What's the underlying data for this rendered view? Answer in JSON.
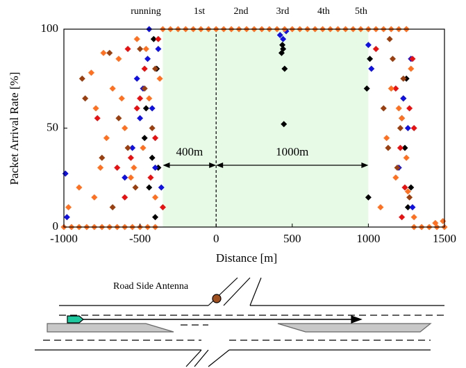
{
  "chart_data": {
    "type": "scatter",
    "y_label": "Packet Arrival Rate [%]",
    "x_label": "Distance [m]",
    "stages": [
      "running",
      "1st",
      "2nd",
      "3rd",
      "4th",
      "5th"
    ],
    "xlim": [
      -1000,
      1500
    ],
    "xticks": [
      -1000,
      -500,
      0,
      500,
      1000,
      1500
    ],
    "ylim": [
      0,
      100
    ],
    "yticks": [
      0,
      50,
      100
    ],
    "shaded_region": [
      -350,
      1000
    ],
    "shade_color": "#e6fae6",
    "reference_line": 0,
    "annotations": [
      {
        "text": "400m",
        "x": [
          -350,
          0
        ]
      },
      {
        "text": "1000m",
        "x": [
          0,
          1000
        ]
      }
    ],
    "series": [
      {
        "color": "#000000",
        "x": [
          -440,
          -420,
          -460,
          -390,
          -470,
          -410,
          430,
          440,
          450,
          435,
          445,
          1000,
          990,
          1010,
          1240,
          1260,
          1220,
          1250,
          -380,
          -400,
          1280,
          1230
        ],
        "values": [
          20,
          35,
          60,
          80,
          45,
          95,
          88,
          90,
          80,
          92,
          52,
          15,
          70,
          85,
          40,
          10,
          55,
          75,
          30,
          5,
          20,
          65
        ]
      },
      {
        "color": "#1010e0",
        "x": [
          -990,
          -980,
          -550,
          -500,
          -480,
          -450,
          -420,
          -400,
          -380,
          -360,
          -520,
          420,
          440,
          460,
          1000,
          1020,
          1200,
          1230,
          1260,
          1290,
          -600,
          1280,
          -440
        ],
        "values": [
          27,
          5,
          40,
          55,
          70,
          85,
          60,
          30,
          90,
          20,
          75,
          97,
          95,
          99,
          92,
          80,
          30,
          65,
          50,
          10,
          25,
          85,
          100
        ]
      },
      {
        "color": "#e81010",
        "x": [
          -780,
          -600,
          -560,
          -520,
          -470,
          -430,
          -400,
          -380,
          1050,
          1180,
          1210,
          1240,
          1270,
          1290,
          -650,
          -500,
          1220,
          1300,
          -580,
          -350
        ],
        "values": [
          55,
          15,
          35,
          60,
          80,
          25,
          45,
          95,
          90,
          70,
          40,
          20,
          60,
          85,
          30,
          65,
          5,
          50,
          90,
          10
        ]
      },
      {
        "color": "#9a4010",
        "x": [
          -880,
          -860,
          -700,
          -640,
          -580,
          -530,
          -470,
          -420,
          1100,
          1130,
          1160,
          1190,
          1230,
          1270,
          -750,
          -500,
          1140,
          1210,
          -680,
          -400,
          1250
        ],
        "values": [
          75,
          65,
          88,
          55,
          40,
          20,
          70,
          50,
          60,
          40,
          85,
          30,
          75,
          15,
          35,
          90,
          95,
          50,
          10,
          80,
          100
        ]
      },
      {
        "color": "#ff7020",
        "x": [
          -970,
          -900,
          -820,
          -790,
          -760,
          -720,
          -680,
          -640,
          -600,
          -560,
          -520,
          -480,
          -440,
          -400,
          -370,
          1080,
          1120,
          1150,
          1180,
          1220,
          1250,
          1280,
          1300,
          1440,
          1490,
          -800,
          -740,
          -620,
          -540,
          -460,
          1200,
          1260,
          -350,
          -300,
          -250,
          -200,
          -150,
          -100,
          -50,
          0,
          50,
          100,
          150,
          200,
          250,
          300,
          350,
          400,
          450,
          500,
          550,
          600,
          650,
          700,
          750,
          800,
          850,
          900,
          950,
          1000,
          1050,
          1100,
          1150,
          1200,
          1250,
          -1000,
          -950,
          -900,
          -850,
          -800,
          -750,
          -700,
          -650,
          -600,
          -550,
          -500,
          -450,
          -400,
          1300,
          1350,
          1400,
          1450,
          1500
        ],
        "values": [
          10,
          20,
          78,
          60,
          30,
          45,
          70,
          85,
          50,
          25,
          95,
          40,
          65,
          15,
          75,
          10,
          45,
          70,
          25,
          55,
          35,
          80,
          5,
          2,
          3,
          15,
          88,
          65,
          30,
          90,
          60,
          18,
          100,
          100,
          100,
          100,
          100,
          100,
          100,
          100,
          100,
          100,
          100,
          100,
          100,
          100,
          100,
          100,
          100,
          100,
          100,
          100,
          100,
          100,
          100,
          100,
          100,
          100,
          100,
          100,
          100,
          100,
          100,
          100,
          100,
          0,
          0,
          0,
          0,
          0,
          0,
          0,
          0,
          0,
          0,
          0,
          0,
          0,
          0,
          0,
          0,
          0,
          0
        ]
      }
    ]
  },
  "diagram": {
    "label": "Road Side Antenna"
  }
}
